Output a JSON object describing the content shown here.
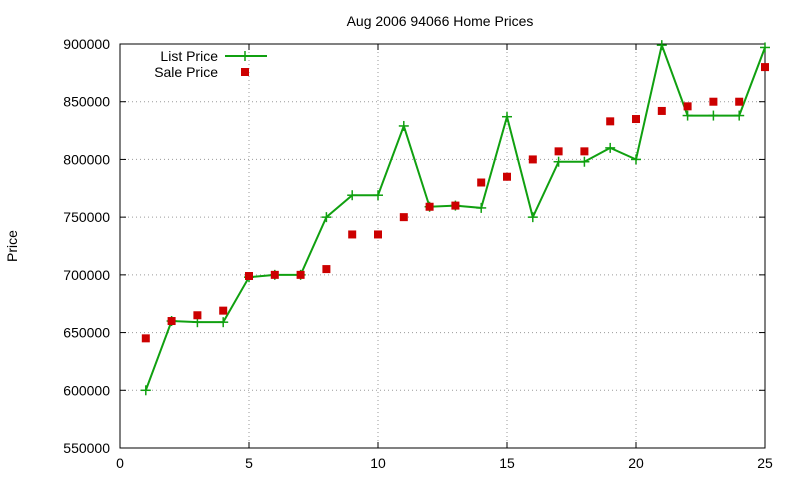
{
  "chart_data": {
    "type": "line",
    "title": "Aug 2006 94066 Home Prices",
    "xlabel": "",
    "ylabel": "Price",
    "xlim": [
      0,
      25
    ],
    "ylim": [
      550000,
      900000
    ],
    "x_ticks": [
      0,
      5,
      10,
      15,
      20,
      25
    ],
    "y_ticks": [
      550000,
      600000,
      650000,
      700000,
      750000,
      800000,
      850000,
      900000
    ],
    "grid": true,
    "legend_position": "top-left",
    "series": [
      {
        "name": "List Price",
        "style": "line-with-plus-markers",
        "color": "#10a010",
        "x": [
          1,
          2,
          3,
          4,
          5,
          6,
          7,
          8,
          9,
          10,
          11,
          12,
          13,
          14,
          15,
          16,
          17,
          18,
          19,
          20,
          21,
          22,
          23,
          24,
          25
        ],
        "y": [
          600000,
          660000,
          659000,
          659000,
          698000,
          700000,
          700000,
          750000,
          769000,
          769000,
          829000,
          759000,
          760000,
          758000,
          837000,
          750000,
          798000,
          798000,
          810000,
          800000,
          899000,
          838000,
          838000,
          838000,
          897000
        ]
      },
      {
        "name": "Sale Price",
        "style": "square-points",
        "color": "#cc0000",
        "x": [
          1,
          2,
          3,
          4,
          5,
          6,
          7,
          8,
          9,
          10,
          11,
          12,
          13,
          14,
          15,
          16,
          17,
          18,
          19,
          20,
          21,
          22,
          23,
          24,
          25
        ],
        "y": [
          645000,
          660000,
          665000,
          669000,
          699000,
          700000,
          700000,
          705000,
          735000,
          735000,
          750000,
          759000,
          760000,
          780000,
          785000,
          800000,
          807000,
          807000,
          833000,
          835000,
          842000,
          846000,
          850000,
          850000,
          880000
        ]
      }
    ]
  }
}
